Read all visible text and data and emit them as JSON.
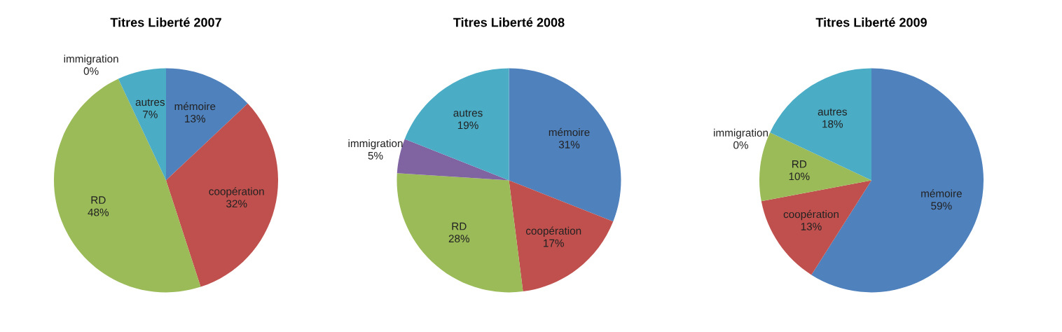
{
  "chart_data": [
    {
      "type": "pie",
      "title": "Titres Liberté 2007",
      "categories": [
        "mémoire",
        "coopération",
        "RD",
        "immigration",
        "autres"
      ],
      "values": [
        13,
        32,
        48,
        0,
        7
      ],
      "colors": [
        "#4f81bd",
        "#c0504d",
        "#9bbb59",
        "#8064a2",
        "#4bacc6"
      ],
      "value_labels": [
        "13%",
        "32%",
        "48%",
        "0%",
        "7%"
      ]
    },
    {
      "type": "pie",
      "title": "Titres Liberté 2008",
      "categories": [
        "mémoire",
        "coopération",
        "RD",
        "immigration",
        "autres"
      ],
      "values": [
        31,
        17,
        28,
        5,
        19
      ],
      "colors": [
        "#4f81bd",
        "#c0504d",
        "#9bbb59",
        "#8064a2",
        "#4bacc6"
      ],
      "value_labels": [
        "31%",
        "17%",
        "28%",
        "5%",
        "19%"
      ]
    },
    {
      "type": "pie",
      "title": "Titres Liberté 2009",
      "categories": [
        "mémoire",
        "coopération",
        "RD",
        "immigration",
        "autres"
      ],
      "values": [
        59,
        13,
        10,
        0,
        18
      ],
      "colors": [
        "#4f81bd",
        "#c0504d",
        "#9bbb59",
        "#8064a2",
        "#4bacc6"
      ],
      "value_labels": [
        "59%",
        "13%",
        "10%",
        "0%",
        "18%"
      ]
    }
  ]
}
